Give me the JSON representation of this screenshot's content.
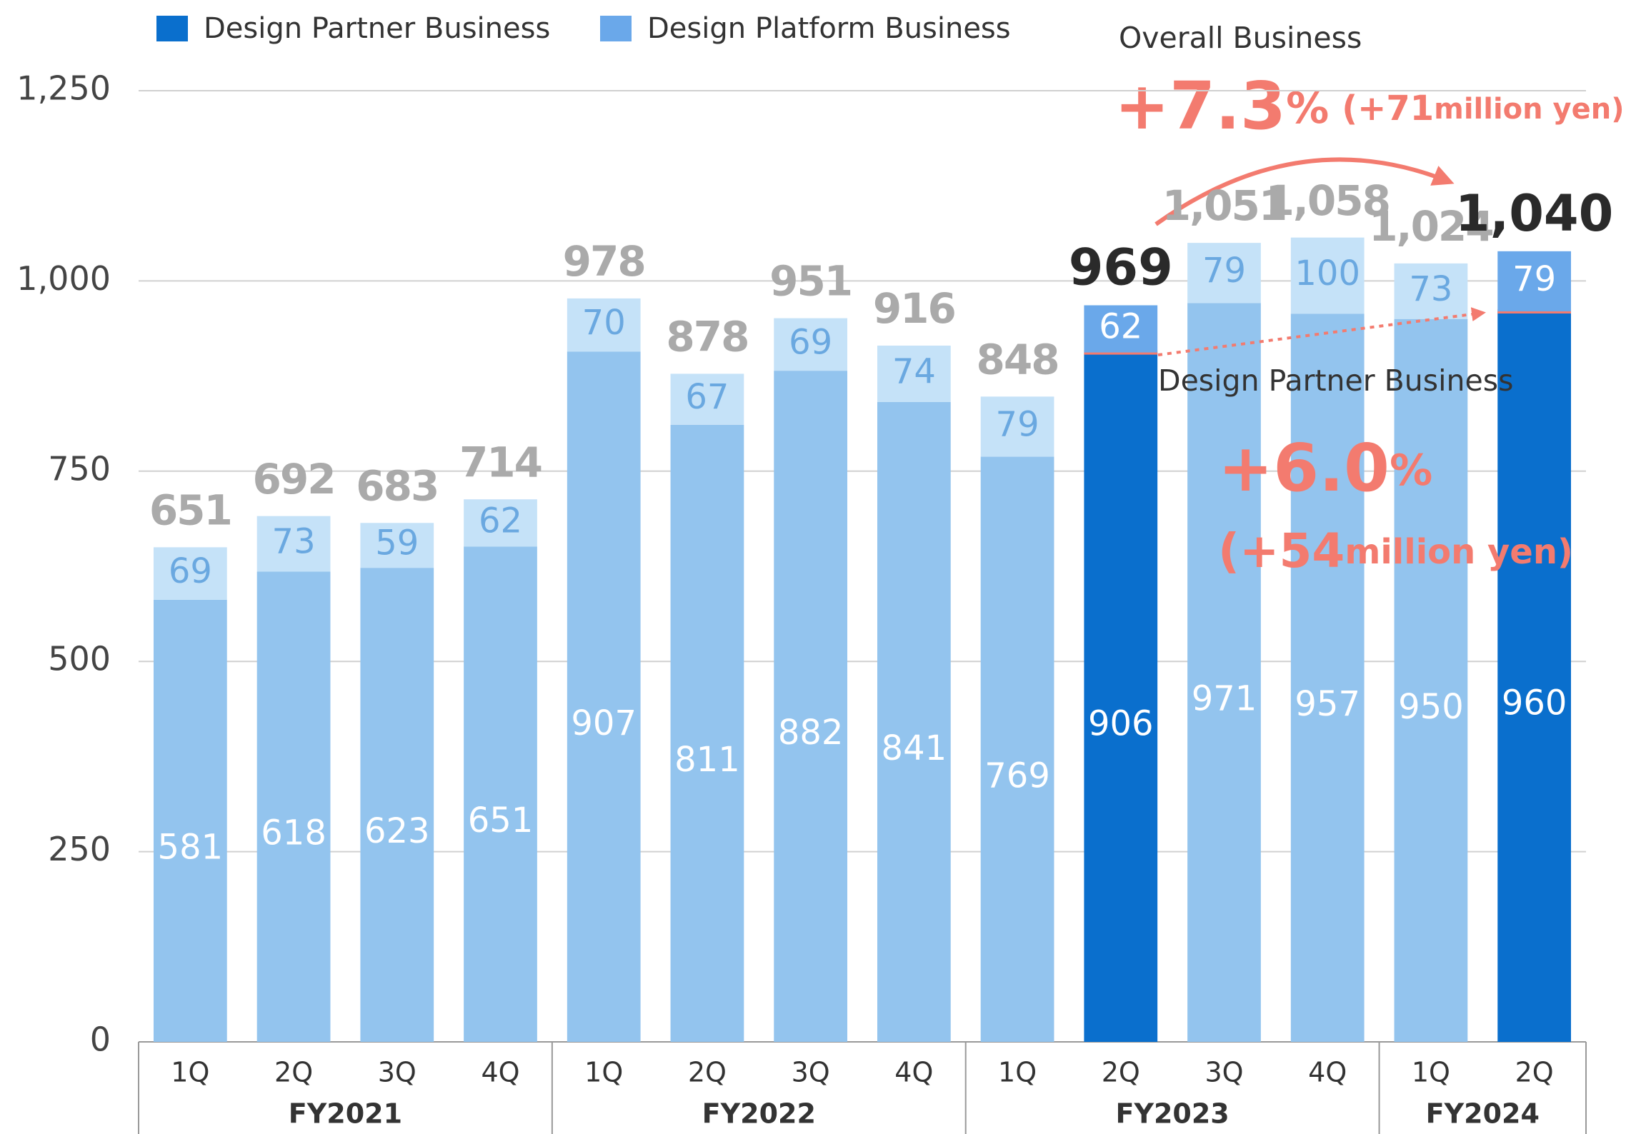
{
  "chart_data": {
    "type": "stacked_bar",
    "categories": [
      "1Q",
      "2Q",
      "3Q",
      "4Q",
      "1Q",
      "2Q",
      "3Q",
      "4Q",
      "1Q",
      "2Q",
      "3Q",
      "4Q",
      "1Q",
      "2Q"
    ],
    "groups": [
      {
        "name": "FY2021",
        "count": 4
      },
      {
        "name": "FY2022",
        "count": 4
      },
      {
        "name": "FY2023",
        "count": 4
      },
      {
        "name": "FY2024",
        "count": 2
      }
    ],
    "series": [
      {
        "name": "Design Partner Business",
        "color": "#0a6fcd",
        "base_color": "#93c4ee",
        "values": [
          581,
          618,
          623,
          651,
          907,
          811,
          882,
          841,
          769,
          906,
          971,
          957,
          950,
          960
        ]
      },
      {
        "name": "Design Platform Business",
        "color": "#6aa8ea",
        "base_color": "#c5e2f8",
        "values": [
          69,
          73,
          59,
          62,
          70,
          67,
          69,
          74,
          79,
          62,
          79,
          100,
          73,
          79
        ]
      }
    ],
    "totals": [
      651,
      692,
      683,
      714,
      978,
      878,
      951,
      916,
      848,
      969,
      {
        "value": 1051,
        "label": "1,051"
      },
      {
        "value": 1058,
        "label": "1,058"
      },
      {
        "value": 1024,
        "label": "1,024"
      },
      {
        "value": 1040,
        "label": "1,040"
      }
    ],
    "highlight": [
      9,
      13
    ],
    "ylim": [
      0,
      1250
    ],
    "yticks": [
      0,
      250,
      500,
      750,
      {
        "value": 1000,
        "label": "1,000"
      },
      {
        "value": 1250,
        "label": "1,250"
      }
    ],
    "grid": true,
    "annotations": {
      "overall": {
        "title": "Overall Business",
        "pct": "+7.3",
        "pct_unit": "%",
        "amount": "(+71",
        "amount_unit": "million yen)"
      },
      "partner": {
        "title": "Design Partner Business",
        "pct": "+6.0",
        "pct_unit": "%",
        "amount": "(+54",
        "amount_unit": "million yen)"
      }
    }
  }
}
